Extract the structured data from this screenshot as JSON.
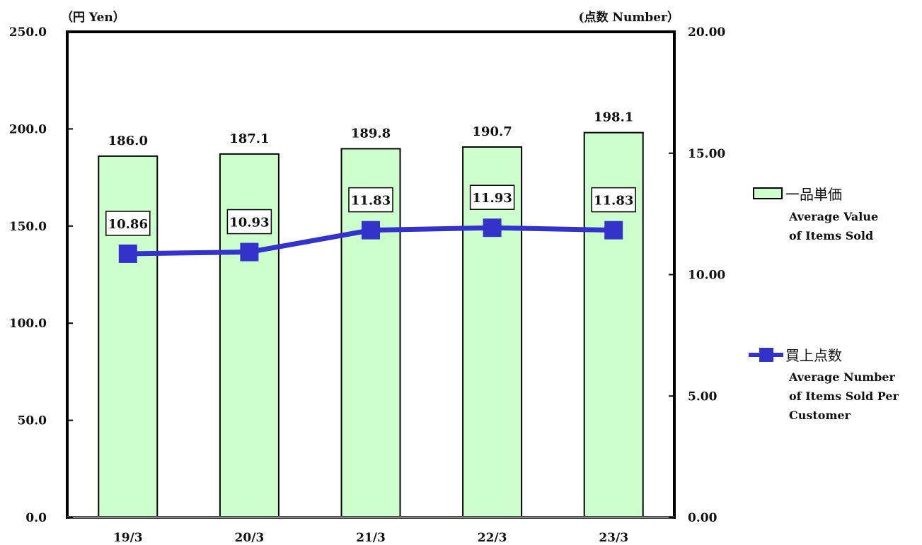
{
  "chart_data": {
    "type": "bar",
    "categories": [
      "19/3",
      "20/3",
      "21/3",
      "22/3",
      "23/3"
    ],
    "left_axis": {
      "unit_label": "（円 Yen）",
      "ylim": [
        0,
        250
      ],
      "ticks": [
        "0.0",
        "50.0",
        "100.0",
        "150.0",
        "200.0",
        "250.0"
      ]
    },
    "right_axis": {
      "unit_label": "(点数 Number）",
      "ylim": [
        0,
        20
      ],
      "ticks": [
        "0.00",
        "5.00",
        "10.00",
        "15.00",
        "20.00"
      ]
    },
    "series": [
      {
        "name_jp": "一品単価",
        "name_en": [
          "Average Value",
          "of Items Sold"
        ],
        "type": "bar",
        "axis": "left",
        "values": [
          186.0,
          187.1,
          189.8,
          190.7,
          198.1
        ],
        "labels": [
          "186.0",
          "187.1",
          "189.8",
          "190.7",
          "198.1"
        ],
        "color": "#ccffcc"
      },
      {
        "name_jp": "買上点数",
        "name_en": [
          "Average Number",
          "of Items Sold Per",
          "Customer"
        ],
        "type": "line",
        "axis": "right",
        "values": [
          10.86,
          10.93,
          11.83,
          11.93,
          11.83
        ],
        "labels": [
          "10.86",
          "10.93",
          "11.83",
          "11.93",
          "11.83"
        ],
        "color": "#3333cc"
      }
    ],
    "grid": false,
    "legend_position": "right"
  }
}
